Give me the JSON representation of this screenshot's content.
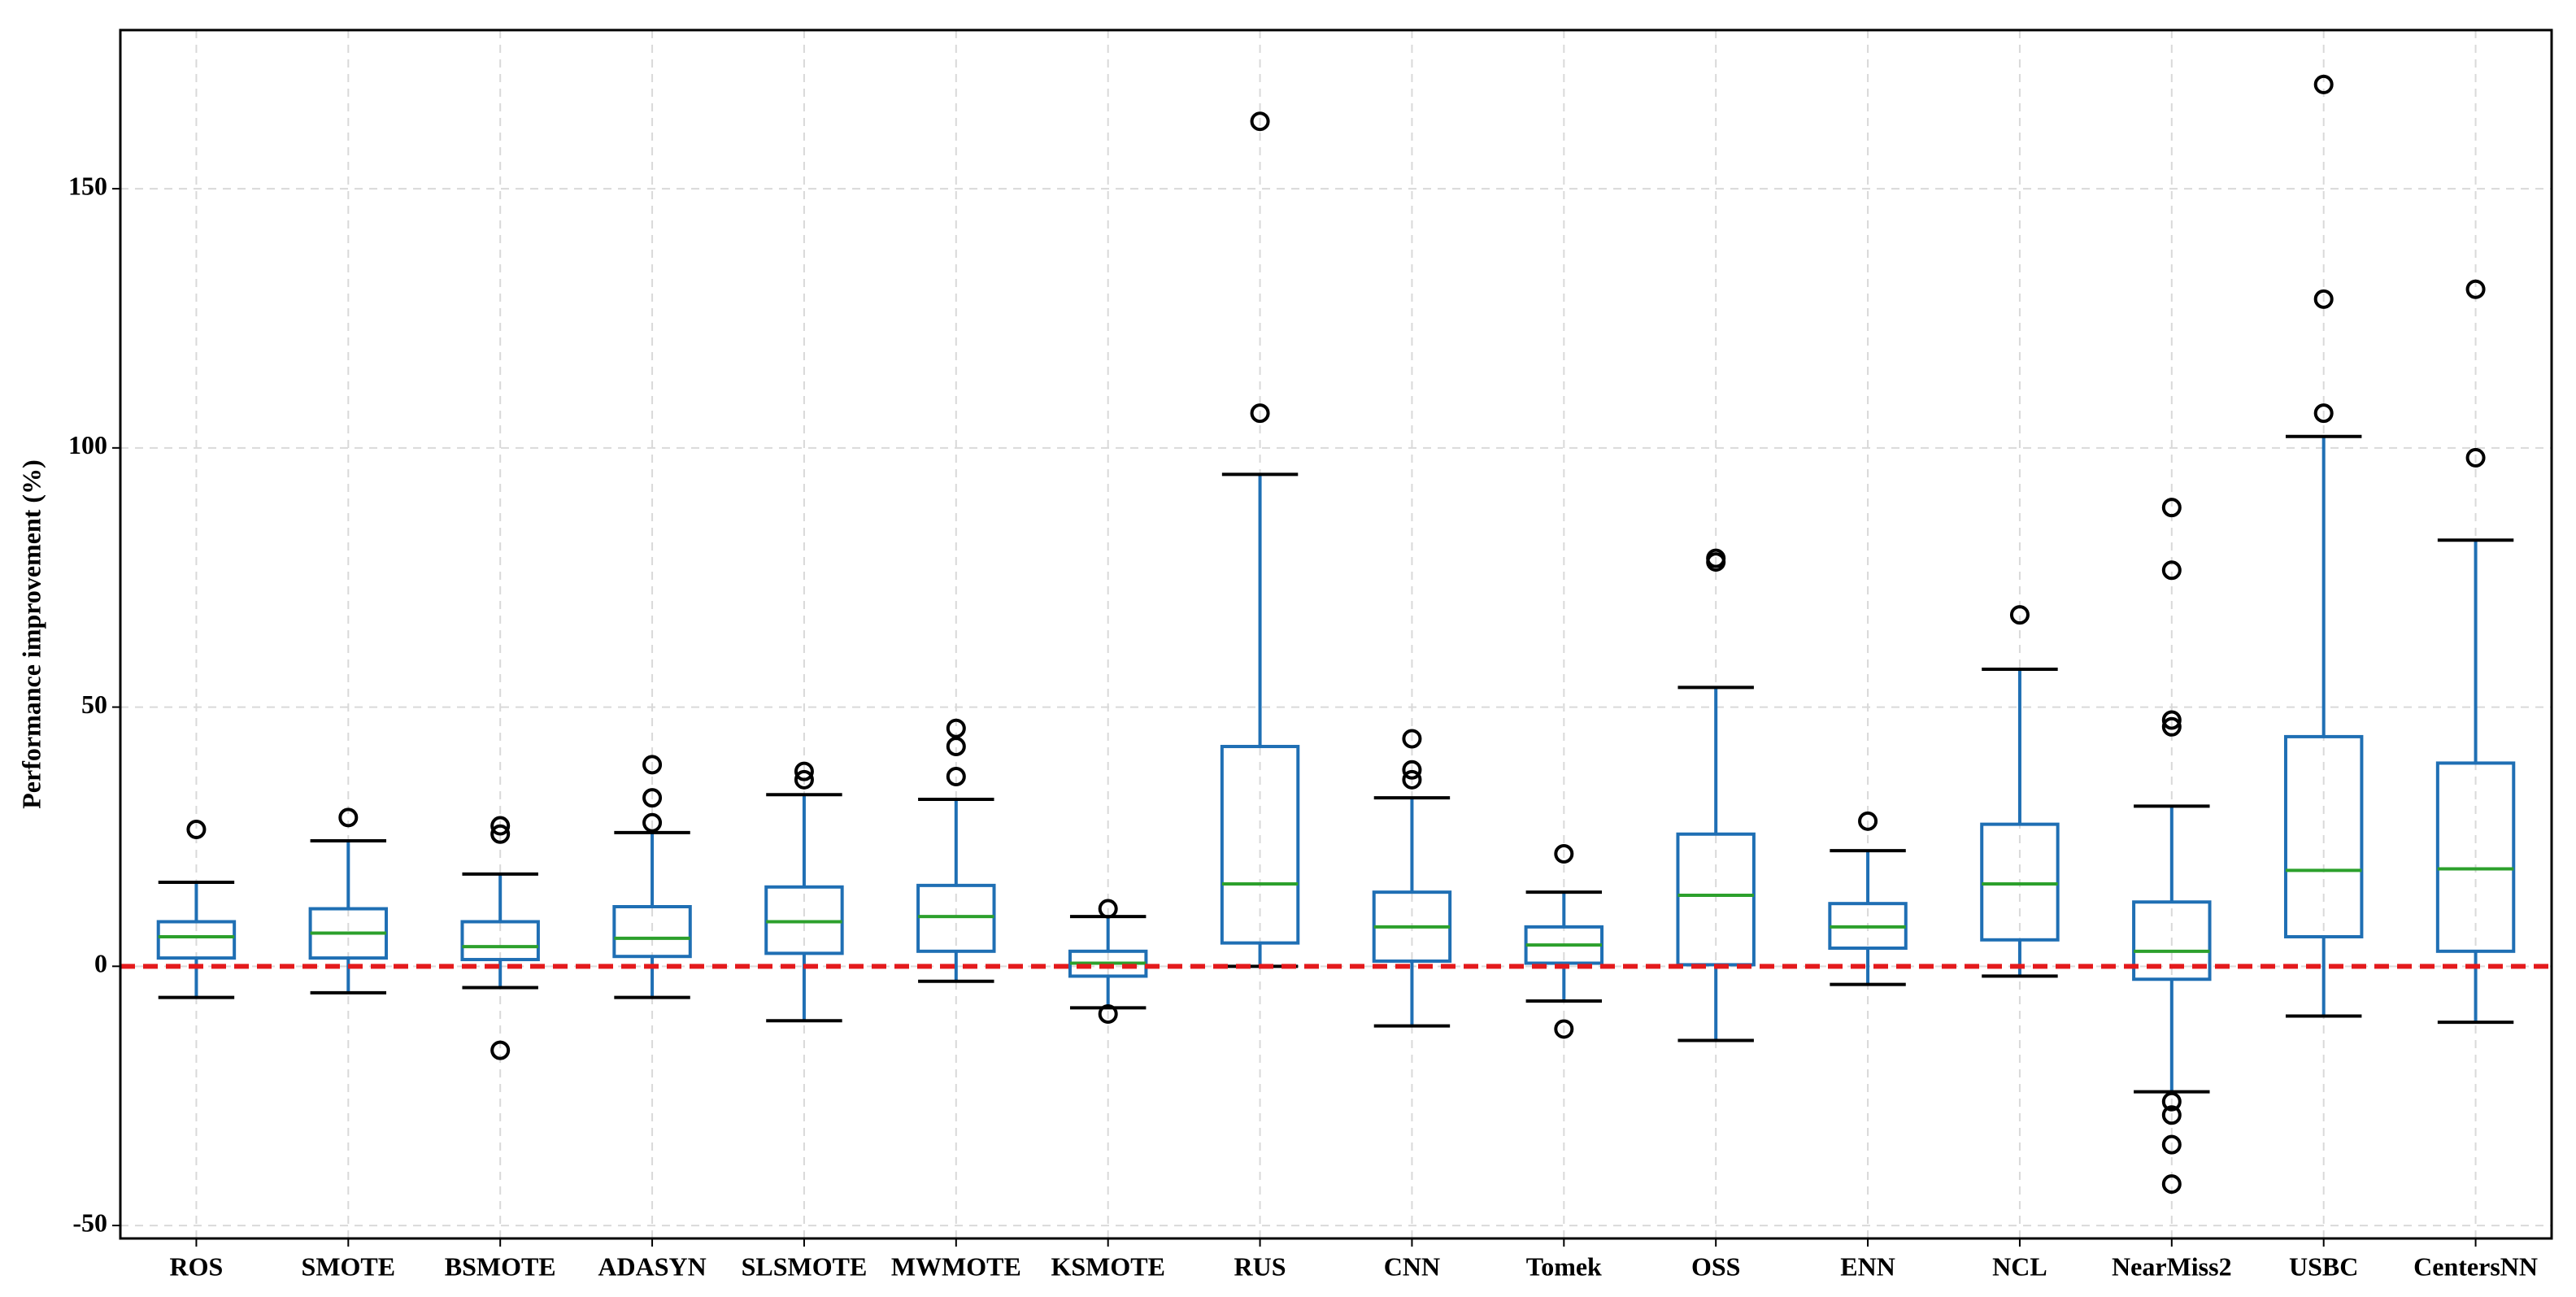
{
  "chart_data": {
    "type": "box",
    "ylabel": "Performance improvement (%)",
    "categories": [
      "ROS",
      "SMOTE",
      "BSMOTE",
      "ADASYN",
      "SLSMOTE",
      "MWMOTE",
      "KSMOTE",
      "RUS",
      "CNN",
      "Tomek",
      "OSS",
      "ENN",
      "NCL",
      "NearMiss2",
      "USBC",
      "CentersNN"
    ],
    "boxes": [
      {
        "whislo": -6,
        "q1": 1.6,
        "med": 5.7,
        "q3": 8.6,
        "whishi": 16.2,
        "fliers": [
          26.4
        ]
      },
      {
        "whislo": -5.1,
        "q1": 1.6,
        "med": 6.4,
        "q3": 11.1,
        "whishi": 24.2,
        "fliers": [
          28.7
        ]
      },
      {
        "whislo": -4.1,
        "q1": 1.3,
        "med": 3.8,
        "q3": 8.6,
        "whishi": 17.8,
        "fliers": [
          27.1,
          25.5,
          -16.2
        ]
      },
      {
        "whislo": -6,
        "q1": 1.9,
        "med": 5.4,
        "q3": 11.5,
        "whishi": 25.8,
        "fliers": [
          27.7,
          32.5,
          38.9
        ]
      },
      {
        "whislo": -10.5,
        "q1": 2.5,
        "med": 8.6,
        "q3": 15.3,
        "whishi": 33.1,
        "fliers": [
          37.6,
          36
        ]
      },
      {
        "whislo": -2.9,
        "q1": 2.9,
        "med": 9.6,
        "q3": 15.6,
        "whishi": 32.2,
        "fliers": [
          36.6,
          42.4,
          45.9
        ]
      },
      {
        "whislo": -8,
        "q1": -1.9,
        "med": 0.6,
        "q3": 2.9,
        "whishi": 9.6,
        "fliers": [
          11.1,
          -9.2
        ]
      },
      {
        "whislo": 0,
        "q1": 4.5,
        "med": 15.9,
        "q3": 42.4,
        "whishi": 94.9,
        "fliers": [
          106.7,
          163
        ]
      },
      {
        "whislo": -11.5,
        "q1": 1,
        "med": 7.6,
        "q3": 14.3,
        "whishi": 32.5,
        "fliers": [
          36,
          37.9,
          43.9
        ]
      },
      {
        "whislo": -6.7,
        "q1": 0.6,
        "med": 4.1,
        "q3": 7.6,
        "whishi": 14.3,
        "fliers": [
          21.7,
          -12.1
        ]
      },
      {
        "whislo": -14.3,
        "q1": 0.3,
        "med": 13.7,
        "q3": 25.5,
        "whishi": 53.8,
        "fliers": [
          78.7,
          78
        ]
      },
      {
        "whislo": -3.5,
        "q1": 3.5,
        "med": 7.6,
        "q3": 12.1,
        "whishi": 22.3,
        "fliers": [
          28
        ]
      },
      {
        "whislo": -1.9,
        "q1": 5.1,
        "med": 15.9,
        "q3": 27.4,
        "whishi": 57.3,
        "fliers": [
          67.8
        ]
      },
      {
        "whislo": -24.2,
        "q1": -2.5,
        "med": 2.9,
        "q3": 12.4,
        "whishi": 30.9,
        "fliers": [
          88.5,
          76.4,
          47.5,
          46.2,
          -26.1,
          -28.7,
          -34.4,
          -42
        ]
      },
      {
        "whislo": -9.6,
        "q1": 5.7,
        "med": 18.5,
        "q3": 44.3,
        "whishi": 102.2,
        "fliers": [
          106.7,
          128.7,
          170.1
        ]
      },
      {
        "whislo": -10.8,
        "q1": 2.9,
        "med": 18.8,
        "q3": 39.2,
        "whishi": 82.2,
        "fliers": [
          98.1,
          130.6
        ]
      }
    ],
    "box_color": "#1f6fb4",
    "median_color": "#2ca02c",
    "cap_color": "#000000",
    "flier_color": "#000000",
    "reference_line": 0,
    "reference_color": "#e41a1c",
    "ylim": [
      -52.5,
      180.6
    ],
    "yticks": [
      -50,
      0,
      50,
      100,
      150
    ],
    "grid": true
  }
}
